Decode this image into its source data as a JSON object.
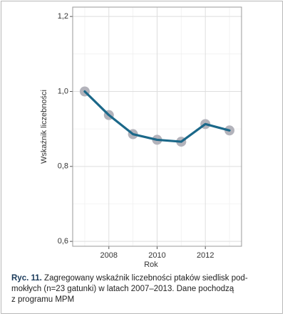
{
  "chart_data": {
    "type": "line",
    "x": [
      2007,
      2008,
      2009,
      2010,
      2011,
      2012,
      2013
    ],
    "series": [
      {
        "name": "Wskaźnik liczebności",
        "color": "#1b6889",
        "marker_color": "#b3b3bb",
        "values": [
          1.0,
          0.937,
          0.886,
          0.871,
          0.866,
          0.913,
          0.896
        ]
      }
    ],
    "xlim": [
      2006.5,
      2013.5
    ],
    "xticks": [
      2008,
      2010,
      2012
    ],
    "minor_xticks": [
      2007,
      2009,
      2011,
      2013
    ],
    "ylim": [
      0.587,
      1.225
    ],
    "yticks": [
      {
        "value": 0.6,
        "label": "0,6"
      },
      {
        "value": 0.8,
        "label": "0,8"
      },
      {
        "value": 1.0,
        "label": "1,0"
      },
      {
        "value": 1.2,
        "label": "1,2"
      }
    ],
    "minor_yticks": [
      0.7,
      0.9,
      1.1
    ],
    "x_label": "Rok",
    "y_label": "Wskaźnik liczebności",
    "grid": true
  },
  "caption": {
    "label": "Ryc. 11.",
    "lines": [
      "Zagregowany wskaźnik liczebności ptaków siedlisk pod-",
      "mokłych (n=23 gatunki) w latach 2007–2013. Dane pochodzą",
      "z programu MPM"
    ]
  }
}
